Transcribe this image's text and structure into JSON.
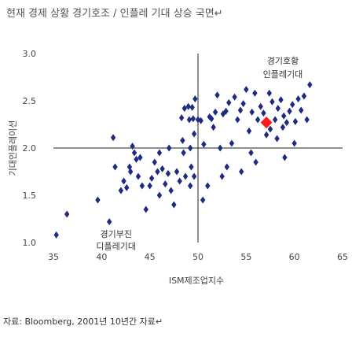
{
  "title": "현재 경제 상황 경기호조 / 인플레 기대 상승 국면↵",
  "source": "자료: Bloomberg, 2001년 10년간 자료↵",
  "chart_data": {
    "type": "scatter",
    "xlabel": "ISM제조업지수",
    "ylabel": "기대인플레이션",
    "xlim": [
      35,
      65
    ],
    "ylim": [
      1.0,
      3.0
    ],
    "xticks": [
      "35",
      "40",
      "45",
      "50",
      "55",
      "60",
      "65"
    ],
    "yticks": [
      "1.0",
      "1.5",
      "2.0",
      "2.5",
      "3.0"
    ],
    "crosshair": {
      "x": 50,
      "y": 2.0
    },
    "annotations": [
      {
        "text": "경기호황",
        "x": 58.8,
        "y": 2.89
      },
      {
        "text": "인플레기대",
        "x": 58.8,
        "y": 2.75
      },
      {
        "text": "경기부진",
        "x": 41.5,
        "y": 1.06
      },
      {
        "text": "디플레기대",
        "x": 41.5,
        "y": 0.93
      }
    ],
    "colors": {
      "points": "#1f2a80",
      "highlight": "#ff1a1a"
    },
    "series": [
      {
        "points": [
          [
            35.3,
            1.08
          ],
          [
            36.4,
            1.3
          ],
          [
            39.6,
            1.45
          ],
          [
            40.8,
            1.22
          ],
          [
            41.2,
            2.11
          ],
          [
            41.4,
            1.8
          ],
          [
            42.0,
            1.55
          ],
          [
            42.3,
            1.65
          ],
          [
            42.6,
            1.58
          ],
          [
            42.9,
            1.8
          ],
          [
            43.2,
            2.02
          ],
          [
            43.4,
            1.95
          ],
          [
            43.6,
            1.88
          ],
          [
            43.8,
            1.7
          ],
          [
            44.2,
            1.6
          ],
          [
            44.6,
            1.35
          ],
          [
            45.0,
            1.6
          ],
          [
            45.2,
            1.68
          ],
          [
            45.5,
            1.85
          ],
          [
            45.8,
            1.75
          ],
          [
            46.0,
            1.5
          ],
          [
            46.3,
            1.78
          ],
          [
            46.6,
            1.62
          ],
          [
            46.9,
            1.73
          ],
          [
            47.2,
            1.55
          ],
          [
            47.5,
            1.4
          ],
          [
            47.8,
            1.75
          ],
          [
            48.1,
            1.65
          ],
          [
            48.3,
            2.32
          ],
          [
            48.4,
            2.08
          ],
          [
            48.5,
            1.95
          ],
          [
            48.6,
            2.42
          ],
          [
            48.7,
            1.7
          ],
          [
            49.0,
            2.44
          ],
          [
            49.1,
            2.3
          ],
          [
            49.2,
            1.6
          ],
          [
            49.2,
            2.0
          ],
          [
            49.3,
            1.8
          ],
          [
            49.4,
            2.43
          ],
          [
            49.5,
            2.31
          ],
          [
            49.6,
            2.15
          ],
          [
            49.6,
            1.7
          ],
          [
            49.7,
            2.52
          ],
          [
            50.0,
            2.3
          ],
          [
            50.3,
            2.29
          ],
          [
            50.6,
            2.04
          ],
          [
            51.2,
            2.33
          ],
          [
            51.4,
            2.31
          ],
          [
            51.6,
            2.22
          ],
          [
            51.8,
            2.38
          ],
          [
            52.0,
            2.56
          ],
          [
            52.3,
            2.0
          ],
          [
            52.6,
            2.36
          ],
          [
            52.9,
            2.39
          ],
          [
            53.2,
            2.48
          ],
          [
            53.5,
            2.05
          ],
          [
            53.8,
            2.54
          ],
          [
            54.1,
            2.3
          ],
          [
            54.4,
            2.4
          ],
          [
            54.7,
            2.47
          ],
          [
            55.0,
            2.62
          ],
          [
            55.3,
            2.18
          ],
          [
            55.6,
            2.38
          ],
          [
            55.9,
            2.58
          ],
          [
            56.2,
            2.3
          ],
          [
            56.5,
            2.44
          ],
          [
            56.8,
            2.37
          ],
          [
            57.1,
            2.14
          ],
          [
            57.4,
            2.58
          ],
          [
            57.7,
            2.49
          ],
          [
            58.0,
            2.3
          ],
          [
            58.3,
            2.42
          ],
          [
            58.6,
            2.51
          ],
          [
            58.9,
            2.34
          ],
          [
            59.2,
            2.27
          ],
          [
            59.5,
            2.39
          ],
          [
            59.8,
            2.46
          ],
          [
            60.1,
            2.28
          ],
          [
            60.4,
            2.52
          ],
          [
            60.7,
            2.4
          ],
          [
            61.0,
            2.55
          ],
          [
            61.3,
            2.3
          ],
          [
            61.6,
            2.67
          ],
          [
            58.2,
            2.1
          ],
          [
            59.0,
            1.9
          ],
          [
            56.0,
            1.85
          ],
          [
            52.5,
            1.7
          ],
          [
            51.0,
            1.6
          ],
          [
            50.5,
            1.45
          ],
          [
            54.5,
            1.75
          ],
          [
            53.0,
            1.8
          ],
          [
            55.5,
            1.95
          ],
          [
            47.0,
            2.0
          ],
          [
            46.0,
            1.95
          ],
          [
            44.0,
            1.9
          ],
          [
            43.0,
            1.75
          ],
          [
            57.5,
            2.2
          ],
          [
            60.0,
            2.05
          ],
          [
            58.8,
            2.22
          ]
        ]
      },
      {
        "points": [
          [
            57.1,
            2.27
          ]
        ]
      }
    ]
  }
}
